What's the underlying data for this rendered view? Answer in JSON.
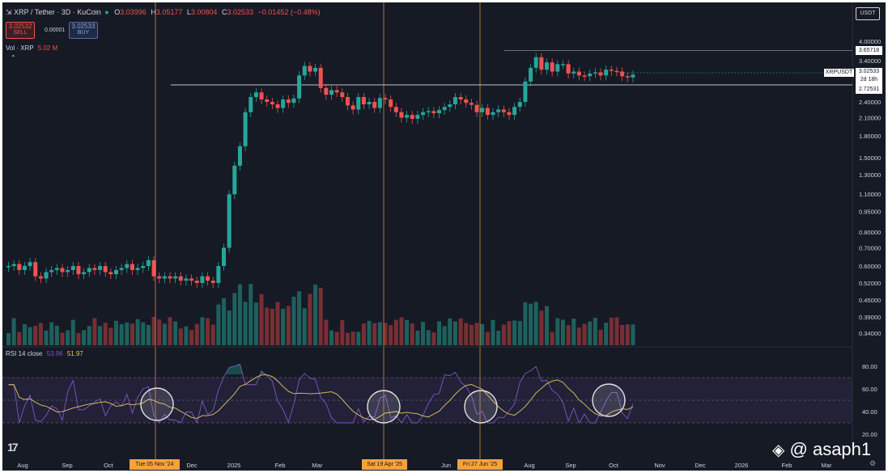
{
  "header": {
    "symbol_text": "XRP / Tether · 3D · KuCoin",
    "o_label": "O",
    "o_value": "3.03996",
    "h_label": "H",
    "h_value": "3.05177",
    "l_label": "L",
    "l_value": "3.00804",
    "c_label": "C",
    "c_value": "3.02533",
    "change": "−0.01452 (−0.48%)",
    "sell_price": "3.02532",
    "sell_label": "SELL",
    "spread": "0.00001",
    "buy_price": "3.02533",
    "buy_label": "BUY",
    "vol_label": "Vol · XRP",
    "vol_value": "5.02 M",
    "currency": "USDT"
  },
  "price_labels": {
    "high_level": "3.65718",
    "current_symbol": "XRPUSDT",
    "current_price": "3.02533",
    "countdown": "2d 18h",
    "support_level": "2.72531"
  },
  "rsi": {
    "label": "RSI 14 close",
    "value1": "53.96",
    "value2": "51.97"
  },
  "markers": [
    "Tue 05 Nov '24",
    "Sat 19 Apr '25",
    "Fri 27 Jun '25"
  ],
  "watermark": "@ asaph1",
  "colors": {
    "up": "#26a69a",
    "down": "#ef5350",
    "rsi_line": "#7e57c2",
    "rsi_ma": "#e5c75c",
    "marker": "#f7a13a"
  },
  "chart_data": {
    "type": "candlestick",
    "scale": "log",
    "interval": "3D",
    "x_labels": [
      "Aug",
      "Sep",
      "Oct",
      "Dec",
      "2025",
      "Feb",
      "Mar",
      "Jun",
      "Aug",
      "Sep",
      "Oct",
      "Nov",
      "Dec",
      "2026",
      "Feb",
      "Mar"
    ],
    "y_ticks": [
      "4.00000",
      "3.40000",
      "2.40000",
      "2.10000",
      "1.80000",
      "1.50000",
      "1.30000",
      "1.10000",
      "0.95000",
      "0.80000",
      "0.70000",
      "0.60000",
      "0.52000",
      "0.45000",
      "0.39000",
      "0.34000"
    ],
    "rsi_ticks": [
      "80.00",
      "60.00",
      "40.00",
      "20.00"
    ],
    "close_series": [
      0.6,
      0.61,
      0.58,
      0.6,
      0.62,
      0.55,
      0.54,
      0.57,
      0.58,
      0.59,
      0.57,
      0.58,
      0.6,
      0.56,
      0.57,
      0.59,
      0.58,
      0.6,
      0.57,
      0.56,
      0.58,
      0.59,
      0.61,
      0.58,
      0.59,
      0.6,
      0.63,
      0.55,
      0.54,
      0.55,
      0.54,
      0.55,
      0.53,
      0.54,
      0.53,
      0.52,
      0.55,
      0.53,
      0.52,
      0.6,
      0.7,
      1.1,
      1.4,
      1.65,
      2.2,
      2.5,
      2.6,
      2.45,
      2.4,
      2.35,
      2.28,
      2.45,
      2.38,
      2.47,
      3.0,
      3.25,
      3.1,
      3.2,
      2.7,
      2.55,
      2.65,
      2.6,
      2.5,
      2.33,
      2.25,
      2.5,
      2.35,
      2.4,
      2.28,
      2.48,
      2.45,
      2.3,
      2.2,
      2.1,
      2.15,
      2.08,
      2.15,
      2.2,
      2.22,
      2.18,
      2.24,
      2.3,
      2.35,
      2.5,
      2.45,
      2.38,
      2.34,
      2.2,
      2.28,
      2.15,
      2.2,
      2.25,
      2.2,
      2.15,
      2.3,
      2.4,
      2.85,
      3.2,
      3.5,
      3.15,
      3.35,
      3.1,
      3.3,
      3.3,
      3.05,
      3.1,
      3.0,
      2.98,
      3.05,
      3.08,
      3.0,
      3.15,
      3.12,
      3.1,
      2.98,
      2.95,
      3.02
    ],
    "resistance": 3.65718,
    "support": 2.72531,
    "current": 3.02533,
    "rsi_last": 53.96,
    "rsi_ma_last": 51.97
  }
}
